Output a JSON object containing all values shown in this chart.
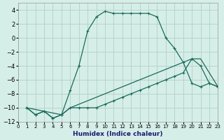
{
  "xlabel": "Humidex (Indice chaleur)",
  "ylabel": "",
  "bg_color": "#d6eee8",
  "grid_color": "#b0cfc8",
  "line_color": "#1a6b5a",
  "xlim": [
    0,
    23
  ],
  "ylim": [
    -12,
    5
  ],
  "xticks": [
    0,
    1,
    2,
    3,
    4,
    5,
    6,
    7,
    8,
    9,
    10,
    11,
    12,
    13,
    14,
    15,
    16,
    17,
    18,
    19,
    20,
    21,
    22,
    23
  ],
  "yticks": [
    -12,
    -10,
    -8,
    -6,
    -4,
    -2,
    0,
    2,
    4
  ],
  "curve1_x": [
    1,
    2,
    3,
    4,
    5,
    6,
    7,
    8,
    9,
    10,
    11,
    12,
    13,
    14,
    15,
    16,
    17,
    18,
    19,
    20,
    21,
    22,
    23
  ],
  "curve1_y": [
    -10,
    -11,
    -10.5,
    -11.5,
    -11,
    -7.5,
    -4,
    1,
    3,
    3.8,
    3.5,
    3.5,
    3.5,
    3.5,
    3.5,
    3.0,
    0,
    -1.5,
    -3.5,
    -6.5,
    -7,
    -6.5,
    -7
  ],
  "curve2_x": [
    1,
    2,
    3,
    4,
    5,
    6,
    7,
    8,
    9,
    10,
    11,
    12,
    13,
    14,
    15,
    16,
    17,
    18,
    19,
    20,
    21,
    22,
    23
  ],
  "curve2_y": [
    -10,
    -11,
    -10.5,
    -11.5,
    -11,
    -10,
    -10,
    -10,
    -10,
    -9.5,
    -9,
    -8.5,
    -8,
    -7.5,
    -7,
    -6.5,
    -6,
    -5.5,
    -5,
    -3,
    -4,
    -6.5,
    -7
  ],
  "curve3_x": [
    1,
    5,
    6,
    20,
    21,
    23
  ],
  "curve3_y": [
    -10,
    -11,
    -10,
    -3,
    -3,
    -7
  ]
}
